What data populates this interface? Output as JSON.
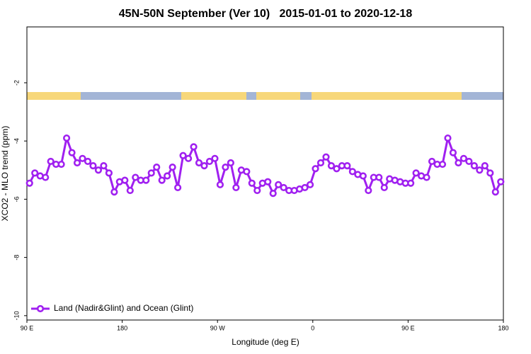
{
  "chart_data": {
    "type": "line",
    "title": "45N-50N September (Ver 10)   2015-01-01 to 2020-12-18",
    "x_label": "Longitude (deg E)",
    "y_label": "XCO2 - MLO trend (ppm)",
    "xlim": [
      90,
      540
    ],
    "xticks": [
      {
        "value": 90,
        "label": "90 E"
      },
      {
        "value": 180,
        "label": "180"
      },
      {
        "value": 270,
        "label": "90 W"
      },
      {
        "value": 360,
        "label": "0"
      },
      {
        "value": 450,
        "label": "90 E"
      },
      {
        "value": 540,
        "label": "180"
      }
    ],
    "ylim": [
      -10.15,
      -0.08
    ],
    "yticks": [
      -10,
      -8,
      -6,
      -4,
      -2
    ],
    "legend": "bottom-left",
    "x": [
      92.5,
      97.5,
      102.5,
      107.5,
      112.5,
      117.5,
      122.5,
      127.5,
      132.5,
      137.5,
      142.5,
      147.5,
      152.5,
      157.5,
      162.5,
      167.5,
      172.5,
      177.5,
      182.5,
      187.5,
      192.5,
      197.5,
      202.5,
      207.5,
      212.5,
      217.5,
      222.5,
      227.5,
      232.5,
      237.5,
      242.5,
      247.5,
      252.5,
      257.5,
      262.5,
      267.5,
      272.5,
      277.5,
      282.5,
      287.5,
      292.5,
      297.5,
      302.5,
      307.5,
      312.5,
      317.5,
      322.5,
      327.5,
      332.5,
      337.5,
      342.5,
      347.5,
      352.5,
      357.5,
      362.5,
      367.5,
      372.5,
      377.5,
      382.5,
      387.5,
      392.5,
      397.5,
      402.5,
      407.5,
      412.5,
      417.5,
      422.5,
      427.5,
      432.5,
      437.5,
      442.5,
      447.5,
      452.5,
      457.5,
      462.5,
      467.5,
      472.5,
      477.5,
      482.5,
      487.5,
      492.5,
      497.5,
      502.5,
      507.5,
      512.5,
      517.5,
      522.5,
      527.5,
      532.5,
      537.5
    ],
    "series": [
      {
        "name": "Land (Nadir&Glint) and Ocean (Glint)",
        "color": "#a020f0",
        "values": [
          -5.45,
          -5.1,
          -5.2,
          -5.25,
          -4.7,
          -4.8,
          -4.8,
          -3.9,
          -4.4,
          -4.75,
          -4.6,
          -4.7,
          -4.85,
          -5.0,
          -4.85,
          -5.1,
          -5.75,
          -5.4,
          -5.35,
          -5.7,
          -5.25,
          -5.35,
          -5.35,
          -5.1,
          -4.9,
          -5.35,
          -5.2,
          -4.9,
          -5.6,
          -4.5,
          -4.6,
          -4.2,
          -4.75,
          -4.85,
          -4.7,
          -4.6,
          -5.5,
          -4.9,
          -4.75,
          -5.6,
          -5.0,
          -5.05,
          -5.45,
          -5.7,
          -5.45,
          -5.4,
          -5.8,
          -5.5,
          -5.6,
          -5.7,
          -5.7,
          -5.65,
          -5.6,
          -5.5,
          -4.95,
          -4.75,
          -4.55,
          -4.85,
          -4.95,
          -4.85,
          -4.85,
          -5.05,
          -5.15,
          -5.2,
          -5.7,
          -5.25,
          -5.25,
          -5.6,
          -5.3,
          -5.35,
          -5.4,
          -5.45,
          -5.45,
          -5.1,
          -5.2,
          -5.25,
          -4.7,
          -4.8,
          -4.8,
          -3.9,
          -4.4,
          -4.75,
          -4.6,
          -4.7,
          -4.85,
          -5.0,
          -4.85,
          -5.1,
          -5.75,
          -5.4
        ]
      }
    ]
  }
}
